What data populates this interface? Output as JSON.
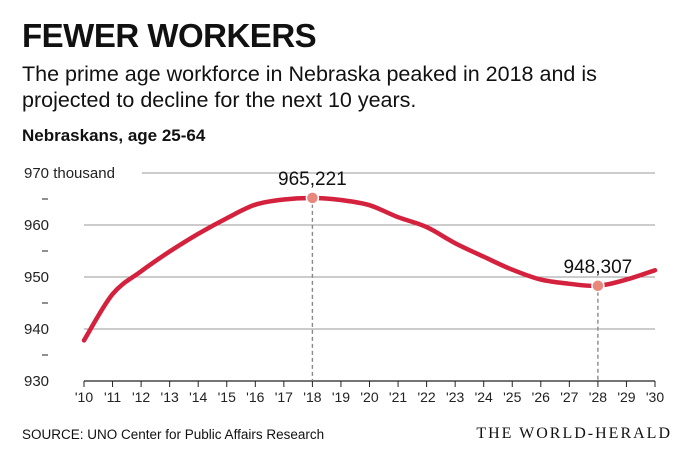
{
  "header": {
    "title": "FEWER WORKERS",
    "subtitle": "The prime age workforce in Nebraska peaked in 2018 and is projected to decline for the next 10 years.",
    "ylabel": "Nebraskans, age 25-64"
  },
  "footer": {
    "source": "SOURCE: UNO Center for Public Affairs Research",
    "logo": "THE WORLD-HERALD"
  },
  "colors": {
    "line": "#d4213d",
    "marker": "#e8877b",
    "grid": "#9a9a9a",
    "axis": "#222222"
  },
  "chart_data": {
    "type": "line",
    "title": "",
    "xlabel": "",
    "ylabel": "Nebraskans, age 25-64",
    "ylim": [
      930,
      970
    ],
    "yticks": [
      930,
      940,
      950,
      960,
      970
    ],
    "ytick_labels": [
      "930",
      "940",
      "950",
      "960",
      "970 thousand"
    ],
    "x": [
      2010,
      2011,
      2012,
      2013,
      2014,
      2015,
      2016,
      2017,
      2018,
      2019,
      2020,
      2021,
      2022,
      2023,
      2024,
      2025,
      2026,
      2027,
      2028,
      2029,
      2030
    ],
    "xtick_labels": [
      "'10",
      "'11",
      "'12",
      "'13",
      "'14",
      "'15",
      "'16",
      "'17",
      "'18",
      "'19",
      "'20",
      "'21",
      "'22",
      "'23",
      "'24",
      "'25",
      "'26",
      "'27",
      "'28",
      "'29",
      "'30"
    ],
    "series": [
      {
        "values": [
          937.8,
          946.7,
          951.1,
          954.9,
          958.3,
          961.3,
          963.9,
          964.9,
          965.2,
          964.8,
          963.8,
          961.5,
          959.6,
          956.5,
          953.9,
          951.4,
          949.5,
          948.7,
          948.3,
          949.5,
          951.3
        ]
      }
    ],
    "annotations": [
      {
        "x": 2018,
        "y": 965.221,
        "label": "965,221"
      },
      {
        "x": 2028,
        "y": 948.307,
        "label": "948,307"
      }
    ],
    "grid": true
  }
}
